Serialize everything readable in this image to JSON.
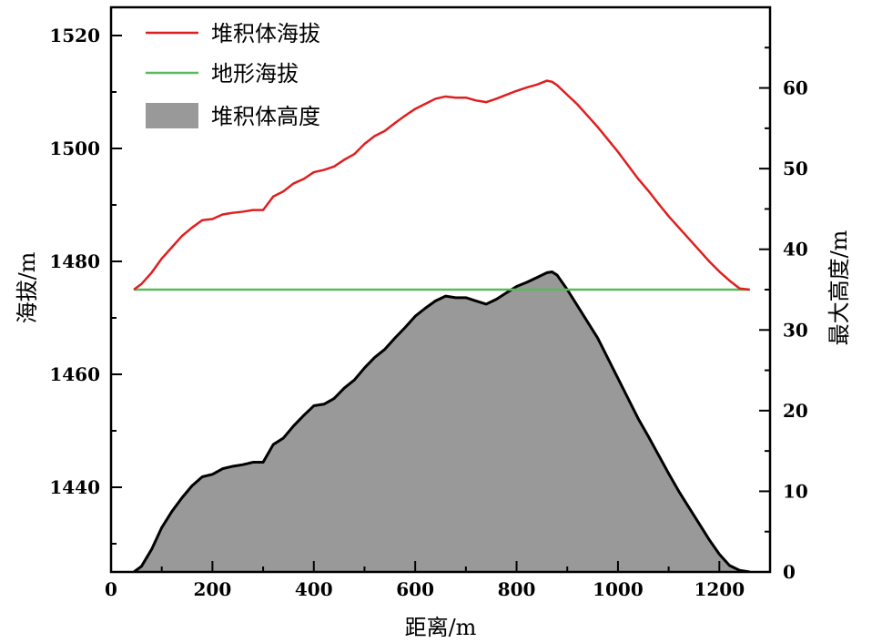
{
  "chart_data": {
    "type": "line",
    "xlabel": "距离/m",
    "ylabel_left": "海拔/m",
    "ylabel_right": "最大高度/m",
    "xlim": [
      0,
      1300
    ],
    "ylim_left": [
      1425,
      1525
    ],
    "ylim_right": [
      0,
      70
    ],
    "x_ticks": [
      0,
      200,
      400,
      600,
      800,
      1000,
      1200
    ],
    "y_left_ticks": [
      1440,
      1460,
      1480,
      1500,
      1520
    ],
    "y_right_ticks": [
      0,
      10,
      20,
      30,
      40,
      50,
      60
    ],
    "grid": false,
    "legend_position": "top-left",
    "colors": {
      "deposit_elevation": "#e01e1e",
      "terrain": "#5cb85c",
      "deposit_height_fill": "#999999",
      "deposit_height_line": "#000000"
    },
    "series": [
      {
        "name": "堆积体海拔",
        "axis": "left",
        "x": [
          45,
          60,
          80,
          100,
          120,
          140,
          160,
          180,
          200,
          220,
          240,
          260,
          280,
          300,
          320,
          340,
          360,
          380,
          400,
          420,
          440,
          460,
          480,
          500,
          520,
          540,
          560,
          580,
          600,
          620,
          640,
          660,
          680,
          700,
          720,
          740,
          760,
          780,
          800,
          820,
          840,
          860,
          870,
          880,
          900,
          920,
          940,
          960,
          980,
          1000,
          1020,
          1040,
          1060,
          1080,
          1100,
          1120,
          1140,
          1160,
          1180,
          1200,
          1220,
          1240,
          1260
        ],
        "values": [
          1475,
          1476,
          1478,
          1480.5,
          1482.5,
          1484.5,
          1486,
          1487.3,
          1487.5,
          1488.3,
          1488.6,
          1488.8,
          1489.1,
          1489.1,
          1491.5,
          1492.4,
          1493.8,
          1494.6,
          1495.8,
          1496.2,
          1496.8,
          1498.0,
          1499.0,
          1500.8,
          1502.2,
          1503.1,
          1504.5,
          1505.8,
          1507.0,
          1507.9,
          1508.8,
          1509.2,
          1509.0,
          1509.0,
          1508.5,
          1508.2,
          1508.8,
          1509.5,
          1510.2,
          1510.8,
          1511.3,
          1512.0,
          1511.8,
          1511.2,
          1509.5,
          1507.8,
          1505.8,
          1503.8,
          1501.6,
          1499.4,
          1497.0,
          1494.6,
          1492.5,
          1490.2,
          1488.0,
          1486.0,
          1484.0,
          1482.0,
          1480.0,
          1478.2,
          1476.6,
          1475.2,
          1475
        ]
      },
      {
        "name": "地形海拔",
        "axis": "left",
        "x": [
          45,
          1260
        ],
        "values": [
          1475,
          1475
        ]
      },
      {
        "name": "堆积体高度",
        "axis": "right",
        "type": "area",
        "x": [
          45,
          60,
          80,
          100,
          120,
          140,
          160,
          180,
          200,
          220,
          240,
          260,
          280,
          300,
          320,
          340,
          360,
          380,
          400,
          420,
          440,
          460,
          480,
          500,
          520,
          540,
          560,
          580,
          600,
          620,
          640,
          660,
          680,
          700,
          720,
          740,
          760,
          780,
          800,
          820,
          840,
          860,
          870,
          880,
          900,
          920,
          940,
          960,
          980,
          1000,
          1020,
          1040,
          1060,
          1080,
          1100,
          1120,
          1140,
          1160,
          1180,
          1200,
          1220,
          1240,
          1260
        ],
        "values": [
          0,
          0.7,
          2.8,
          5.5,
          7.5,
          9.2,
          10.7,
          11.8,
          12.1,
          12.8,
          13.1,
          13.3,
          13.6,
          13.6,
          15.8,
          16.6,
          18.1,
          19.4,
          20.6,
          20.8,
          21.5,
          22.8,
          23.8,
          25.3,
          26.6,
          27.6,
          29.0,
          30.3,
          31.7,
          32.7,
          33.6,
          34.2,
          34.0,
          34.0,
          33.6,
          33.2,
          33.8,
          34.6,
          35.4,
          35.9,
          36.5,
          37.1,
          37.2,
          36.8,
          35.0,
          33.0,
          31.0,
          29.0,
          26.5,
          24.0,
          21.5,
          19.0,
          16.8,
          14.5,
          12.2,
          10.0,
          8.0,
          6.0,
          4.0,
          2.2,
          0.8,
          0.2,
          0
        ]
      }
    ]
  }
}
